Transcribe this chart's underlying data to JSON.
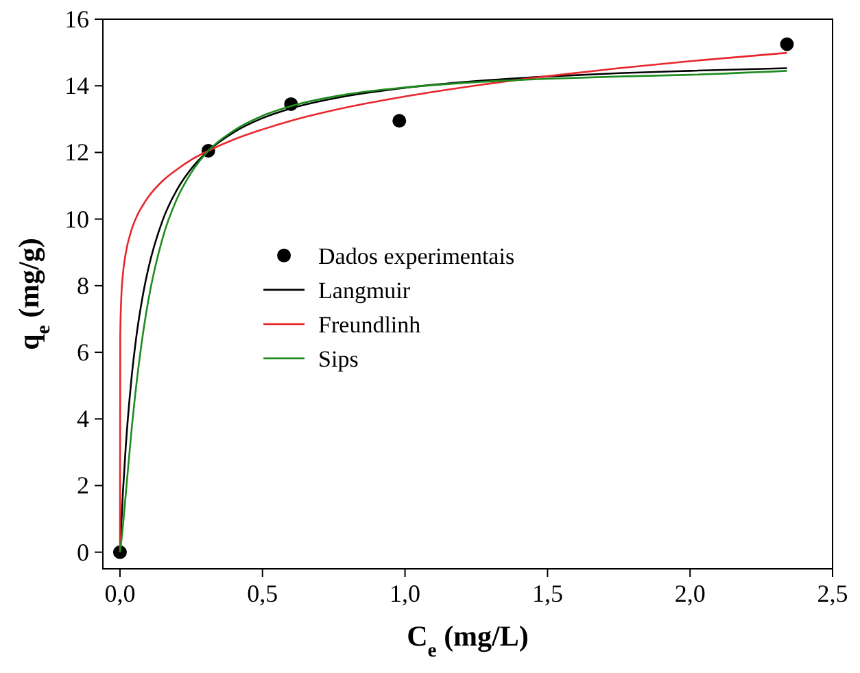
{
  "chart_data": {
    "type": "line",
    "xlabel": "C$_{e}$ (mg/L)",
    "ylabel": "q$_{e}$ (mg/g)",
    "xlim": [
      -0.06,
      2.5
    ],
    "ylim": [
      -0.5,
      16
    ],
    "xticks": [
      {
        "value": 0,
        "label": "0,0"
      },
      {
        "value": 0.5,
        "label": "0,5"
      },
      {
        "value": 1,
        "label": "1,0"
      },
      {
        "value": 1.5,
        "label": "1,5"
      },
      {
        "value": 2,
        "label": "2,0"
      },
      {
        "value": 2.5,
        "label": "2,5"
      }
    ],
    "yticks": [
      0,
      2,
      4,
      6,
      8,
      10,
      12,
      14,
      16
    ],
    "grid": false,
    "legend": "center",
    "series": [
      {
        "name": "Dados experimentais",
        "type": "scatter",
        "marker": "circle",
        "color": "#000000",
        "x": [
          0,
          0.31,
          0.6,
          0.98,
          2.34
        ],
        "values": [
          0,
          12.05,
          13.45,
          12.95,
          15.25
        ]
      },
      {
        "name": "Langmuir",
        "type": "line",
        "marker": "none",
        "color": "#000000",
        "x": [
          0,
          0.01,
          0.02,
          0.04,
          0.06,
          0.08,
          0.1,
          0.15,
          0.2,
          0.25,
          0.31,
          0.4,
          0.5,
          0.6,
          0.8,
          1.0,
          1.25,
          1.5,
          1.75,
          2.0,
          2.34
        ],
        "values": [
          0,
          1.75,
          3.13,
          5.18,
          6.63,
          7.7,
          8.53,
          9.97,
          10.88,
          11.51,
          12.05,
          12.61,
          13.03,
          13.32,
          13.7,
          13.94,
          14.14,
          14.28,
          14.38,
          14.45,
          14.53
        ]
      },
      {
        "name": "Freundlinh",
        "type": "line",
        "marker": "none",
        "color": "#e8262b",
        "x": [
          0,
          0.001,
          0.005,
          0.01,
          0.02,
          0.04,
          0.06,
          0.08,
          0.1,
          0.15,
          0.2,
          0.25,
          0.31,
          0.4,
          0.5,
          0.6,
          0.8,
          1.0,
          1.25,
          1.5,
          1.75,
          2.0,
          2.34
        ],
        "values": [
          0,
          6.49,
          7.72,
          8.32,
          8.96,
          9.66,
          10.1,
          10.41,
          10.67,
          11.15,
          11.49,
          11.78,
          12.05,
          12.39,
          12.69,
          12.95,
          13.36,
          13.68,
          14.01,
          14.29,
          14.53,
          14.74,
          14.99
        ]
      },
      {
        "name": "Sips",
        "type": "line",
        "marker": "none",
        "color": "#1e8c1e",
        "x": [
          0,
          0.01,
          0.02,
          0.04,
          0.06,
          0.08,
          0.1,
          0.15,
          0.2,
          0.25,
          0.31,
          0.4,
          0.5,
          0.6,
          0.8,
          1.0,
          1.25,
          1.5,
          1.75,
          2.0,
          2.34
        ],
        "values": [
          0,
          0.75,
          1.71,
          3.61,
          5.21,
          6.52,
          7.58,
          9.44,
          10.61,
          11.39,
          12.05,
          12.66,
          13.1,
          13.39,
          13.75,
          13.95,
          14.11,
          14.21,
          14.28,
          14.33,
          14.45
        ]
      }
    ]
  }
}
